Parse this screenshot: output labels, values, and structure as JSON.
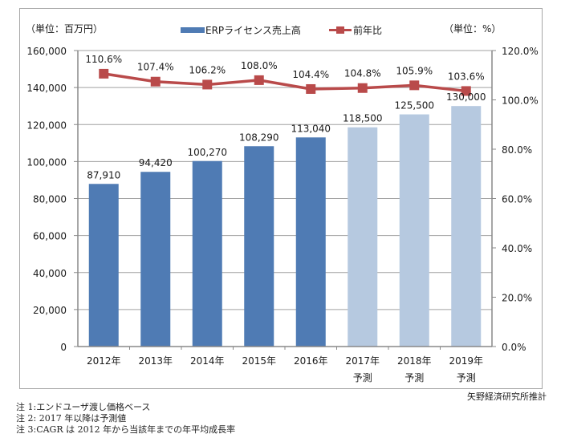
{
  "chart_data": {
    "type": "bar+line",
    "categories": [
      "2012年",
      "2013年",
      "2014年",
      "2015年",
      "2016年",
      "2017年\n予測",
      "2018年\n予測",
      "2019年\n予測"
    ],
    "forecast": [
      false,
      false,
      false,
      false,
      false,
      true,
      true,
      true
    ],
    "series": [
      {
        "name": "ERPライセンス売上高",
        "type": "bar",
        "axis": "left",
        "values": [
          87910,
          94420,
          100270,
          108290,
          113040,
          118500,
          125500,
          130000
        ],
        "labels": [
          "87,910",
          "94,420",
          "100,270",
          "108,290",
          "113,040",
          "118,500",
          "125,500",
          "130,000"
        ]
      },
      {
        "name": "前年比",
        "type": "line",
        "axis": "right",
        "values": [
          110.6,
          107.4,
          106.2,
          108.0,
          104.4,
          104.8,
          105.9,
          103.6
        ],
        "labels": [
          "110.6%",
          "107.4%",
          "106.2%",
          "108.0%",
          "104.4%",
          "104.8%",
          "105.9%",
          "103.6%"
        ]
      }
    ],
    "left_axis": {
      "unit_label": "（単位：百万円）",
      "ylim": [
        0,
        160000
      ],
      "ticks": [
        "0",
        "20,000",
        "40,000",
        "60,000",
        "80,000",
        "100,000",
        "120,000",
        "140,000",
        "160,000"
      ]
    },
    "right_axis": {
      "unit_label": "（単位：%）",
      "ylim": [
        0,
        120
      ],
      "ticks": [
        "0.0%",
        "20.0%",
        "40.0%",
        "60.0%",
        "80.0%",
        "100.0%",
        "120.0%"
      ]
    },
    "legend": {
      "position": "top-center",
      "items": [
        "ERPライセンス売上高",
        "前年比"
      ]
    },
    "grid": true,
    "colors": {
      "bar_actual": "#4f7bb4",
      "bar_forecast": "#b6c9e0",
      "line": "#b94a4a",
      "grid": "#9a9a9a"
    }
  },
  "source": "矢野経済研究所推計",
  "notes": [
    "注 1:エンドユーザ渡し価格ベース",
    "注 2: 2017 年以降は予測値",
    "注 3:CAGR は 2012 年から当該年までの年平均成長率"
  ]
}
